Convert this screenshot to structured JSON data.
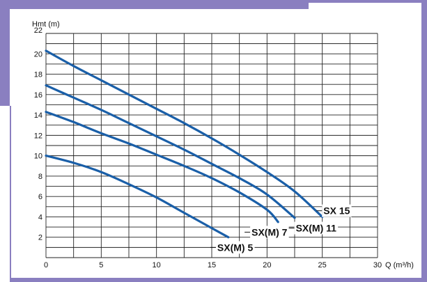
{
  "chart_data": {
    "type": "line",
    "xlabel": "Q (m³/h)",
    "ylabel": "Hmt (m)",
    "xlim": [
      0,
      30
    ],
    "ylim": [
      0,
      22
    ],
    "x_ticks": [
      0,
      5,
      10,
      15,
      20,
      25,
      30
    ],
    "y_ticks": [
      2,
      4,
      6,
      8,
      10,
      12,
      14,
      16,
      18,
      20,
      22
    ],
    "x_grid_step": 2.5,
    "y_grid_step": 1,
    "grid": true,
    "series": [
      {
        "name": "SX(M) 5",
        "x": [
          0,
          2.5,
          5,
          7.5,
          10,
          12.5,
          15,
          16.5
        ],
        "y": [
          10,
          9.3,
          8.4,
          7.2,
          5.9,
          4.4,
          2.9,
          2.0
        ]
      },
      {
        "name": "SX(M) 7",
        "x": [
          0,
          2.5,
          5,
          7.5,
          10,
          12.5,
          15,
          17.5,
          20,
          21
        ],
        "y": [
          14.3,
          13.3,
          12.2,
          11.2,
          10.1,
          9.0,
          7.8,
          6.4,
          4.7,
          3.5
        ]
      },
      {
        "name": "SX(M) 11",
        "x": [
          0,
          2.5,
          5,
          7.5,
          10,
          12.5,
          15,
          17.5,
          20,
          22.5
        ],
        "y": [
          16.9,
          15.7,
          14.5,
          13.2,
          11.9,
          10.6,
          9.2,
          7.8,
          6.2,
          3.9
        ]
      },
      {
        "name": "SX 15",
        "x": [
          0,
          2.5,
          5,
          7.5,
          10,
          12.5,
          15,
          17.5,
          20,
          22.5,
          25
        ],
        "y": [
          20.3,
          18.8,
          17.4,
          16.0,
          14.6,
          13.2,
          11.7,
          10.1,
          8.4,
          6.5,
          4.0
        ]
      }
    ],
    "series_color": "#1a5fa8",
    "series_label_x": [
      15.5,
      18.6,
      22.6,
      25.1
    ],
    "series_label_y": [
      1.0,
      2.5,
      2.9,
      4.6
    ]
  },
  "colors": {
    "frame": "#8a7fc0",
    "grid": "#222222",
    "line": "#1a5fa8"
  }
}
